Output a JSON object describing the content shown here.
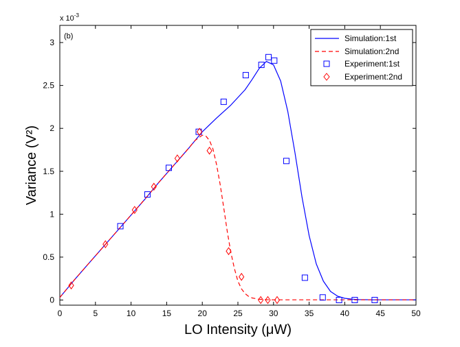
{
  "chart_data": {
    "type": "line",
    "panel_label": "(b)",
    "xlabel": "LO Intensity (μW)",
    "ylabel": "Variance (V²)",
    "y_exponent_label": "x 10",
    "y_exponent_power": "-3",
    "xlim": [
      0,
      50
    ],
    "ylim": [
      -0.06,
      3.2
    ],
    "x_ticks": [
      0,
      5,
      10,
      15,
      20,
      25,
      30,
      35,
      40,
      45,
      50
    ],
    "y_ticks": [
      0,
      0.5,
      1,
      1.5,
      2,
      2.5,
      3
    ],
    "y_tick_labels": [
      "0",
      "0.5",
      "1",
      "1.5",
      "2",
      "2.5",
      "3"
    ],
    "legend_position": "top-right",
    "series": [
      {
        "name": "Simulation:1st",
        "style": "solid-line",
        "color": "#0000ff",
        "x": [
          0,
          2,
          4,
          6,
          8,
          10,
          12,
          14,
          16,
          18,
          20,
          22,
          24,
          26,
          27,
          28,
          29,
          30,
          31,
          32,
          33,
          34,
          35,
          36,
          37,
          38,
          39,
          40,
          41,
          42,
          44,
          46,
          48,
          50
        ],
        "values": [
          0.03,
          0.23,
          0.42,
          0.61,
          0.8,
          0.99,
          1.18,
          1.38,
          1.57,
          1.76,
          1.96,
          2.12,
          2.27,
          2.45,
          2.57,
          2.7,
          2.78,
          2.74,
          2.55,
          2.2,
          1.72,
          1.2,
          0.75,
          0.42,
          0.22,
          0.1,
          0.045,
          0.02,
          0.01,
          0.005,
          0.002,
          0.002,
          0.002,
          0.002
        ]
      },
      {
        "name": "Simulation:2nd",
        "style": "dashed-line",
        "color": "#ff0000",
        "x": [
          0,
          2,
          4,
          6,
          8,
          10,
          12,
          14,
          16,
          18,
          19,
          20,
          20.5,
          21,
          21.5,
          22,
          22.5,
          23,
          23.5,
          24,
          24.5,
          25,
          25.5,
          26,
          26.5,
          27,
          28,
          29,
          30,
          32,
          35,
          40,
          50
        ],
        "values": [
          0.03,
          0.23,
          0.42,
          0.61,
          0.8,
          0.99,
          1.18,
          1.38,
          1.57,
          1.76,
          1.86,
          1.92,
          1.91,
          1.86,
          1.76,
          1.58,
          1.35,
          1.08,
          0.8,
          0.56,
          0.37,
          0.22,
          0.13,
          0.075,
          0.042,
          0.024,
          0.009,
          0.004,
          0.002,
          0.002,
          0.002,
          0.002,
          0.002
        ]
      },
      {
        "name": "Experiment:1st",
        "style": "square-marker",
        "color": "#0000ff",
        "x": [
          8.5,
          12.3,
          15.3,
          19.5,
          23.0,
          26.1,
          28.3,
          29.3,
          30.1,
          31.8,
          34.4,
          36.9,
          39.2,
          41.4,
          44.2
        ],
        "values": [
          0.86,
          1.23,
          1.54,
          1.96,
          2.31,
          2.62,
          2.74,
          2.83,
          2.79,
          1.62,
          0.26,
          0.03,
          0.0,
          0.0,
          0.0
        ]
      },
      {
        "name": "Experiment:2nd",
        "style": "diamond-marker",
        "color": "#ff0000",
        "x": [
          1.6,
          6.4,
          10.5,
          13.2,
          16.5,
          19.6,
          21.0,
          23.7,
          25.5,
          28.2,
          29.2,
          30.5
        ],
        "values": [
          0.17,
          0.65,
          1.05,
          1.32,
          1.65,
          1.96,
          1.74,
          0.57,
          0.27,
          0.0,
          0.0,
          0.0
        ]
      }
    ]
  }
}
